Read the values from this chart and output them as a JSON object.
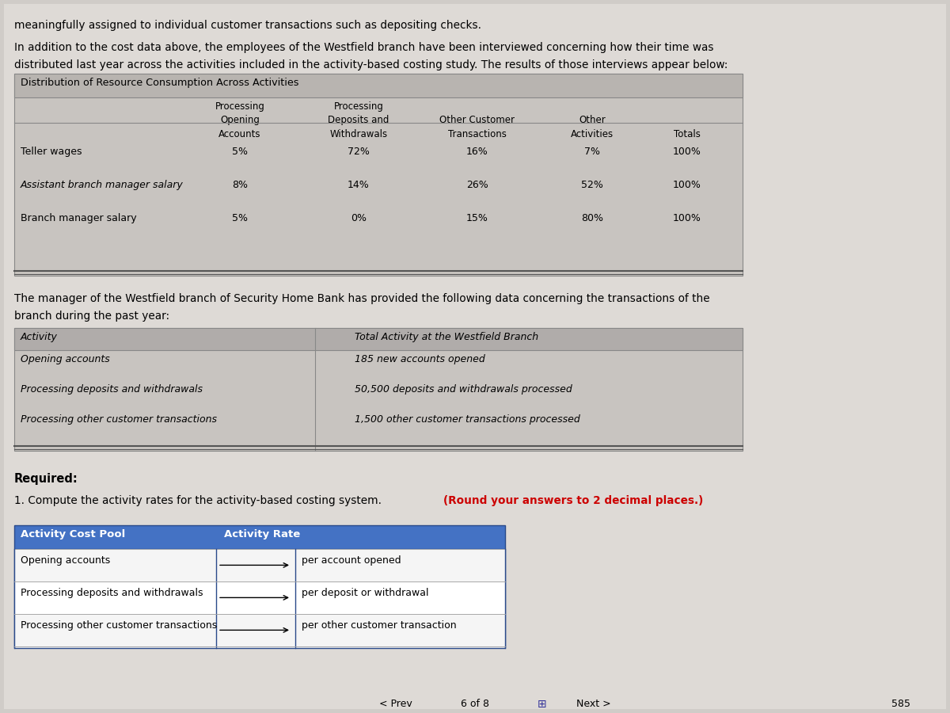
{
  "bg_color": "#d0ccc8",
  "page_bg": "#e8e4e0",
  "text_color": "#000000",
  "intro_line1": "meaningfully assigned to individual customer transactions such as depositing checks.",
  "intro_line2": "In addition to the cost data above, the employees of the Westfield branch have been interviewed concerning how their time was",
  "intro_line3": "distributed last year across the activities included in the activity-based costing study. The results of those interviews appear below:",
  "table1_title": "Distribution of Resource Consumption Across Activities",
  "table1_header": [
    "",
    "Opening\nAccounts",
    "Processing\nDeposits and\nWithdrawals",
    "Processing\nOther Customer\nTransactions",
    "Other\nActivities",
    "Totals"
  ],
  "table1_rows": [
    [
      "Teller wages",
      "5%",
      "72%",
      "16%",
      "7%",
      "100%"
    ],
    [
      "Assistant branch manager salary",
      "8%",
      "14%",
      "26%",
      "52%",
      "100%"
    ],
    [
      "Branch manager salary",
      "5%",
      "0%",
      "15%",
      "80%",
      "100%"
    ]
  ],
  "middle_text1": "The manager of the Westfield branch of Security Home Bank has provided the following data concerning the transactions of the",
  "middle_text2": "branch during the past year:",
  "table2_header": [
    "Activity",
    "Total Activity at the Westfield Branch"
  ],
  "table2_rows": [
    [
      "Opening accounts",
      "185 new accounts opened"
    ],
    [
      "Processing deposits and withdrawals",
      "50,500 deposits and withdrawals processed"
    ],
    [
      "Processing other customer transactions",
      "1,500 other customer transactions processed"
    ]
  ],
  "required_text": "Required:",
  "required_sub": "1. Compute the activity rates for the activity-based costing system. ",
  "required_bold": "(Round your answers to 2 decimal places.)",
  "table3_header": [
    "Activity Cost Pool",
    "Activity Rate",
    ""
  ],
  "table3_rows": [
    [
      "Opening accounts",
      "",
      "per account opened"
    ],
    [
      "Processing deposits and withdrawals",
      "",
      "per deposit or withdrawal"
    ],
    [
      "Processing other customer transactions",
      "",
      "per other customer transaction"
    ]
  ],
  "footer_text": "< Prev    6 of 8       Next >",
  "page_num": "585"
}
